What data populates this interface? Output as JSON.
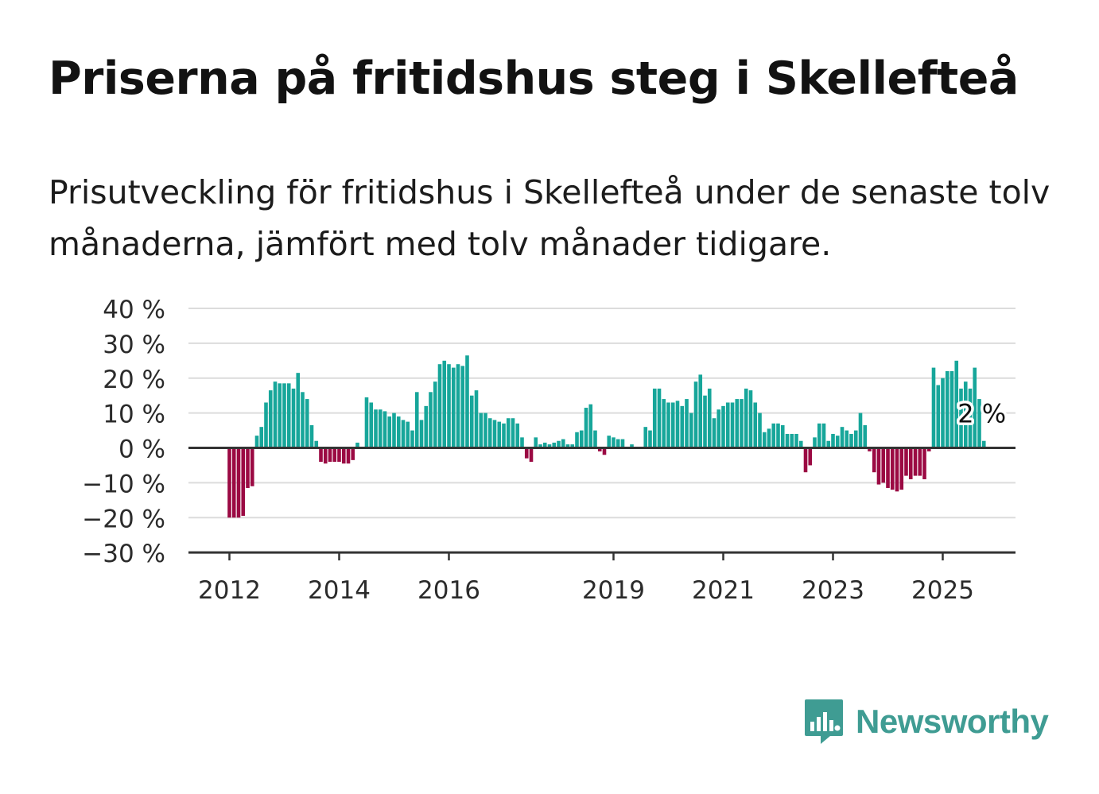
{
  "title": "Priserna på fritidshus steg i Skellefteå",
  "subtitle": "Prisutveckling för fritidshus i Skellefteå under de senaste tolv månaderna, jämfört med tolv månader tidigare.",
  "brand": {
    "name": "Newsworthy",
    "icon": "newsworthy-logo-icon"
  },
  "colors": {
    "positive": "#17a69a",
    "negative": "#9b0a43",
    "axis": "#333333",
    "grid": "#dcdcdc",
    "brand": "#3f9c93"
  },
  "chart_data": {
    "type": "bar",
    "title": "Priserna på fritidshus steg i Skellefteå",
    "xlabel": "",
    "ylabel": "",
    "x_start": "2012-01",
    "x_ticks": [
      "2012",
      "2014",
      "2016",
      "2019",
      "2021",
      "2023",
      "2025"
    ],
    "y_ticks": [
      40,
      30,
      20,
      10,
      0,
      -10,
      -20,
      -30
    ],
    "y_tick_labels": [
      "40 %",
      "30 %",
      "20 %",
      "10 %",
      "0 %",
      "−10 %",
      "−20 %",
      "−30 %"
    ],
    "ylim": [
      -30,
      40
    ],
    "grid": true,
    "annotation": {
      "text": "2 %",
      "value": 2
    },
    "series": [
      {
        "values": [
          -20,
          -20,
          -20,
          -19.5,
          -11.5,
          -11,
          3.5,
          6,
          13,
          16.5,
          19,
          18.5,
          18.5,
          18.5,
          17,
          21.5,
          16,
          14,
          6.5,
          2,
          -4,
          -4.5,
          -4,
          -4,
          -4,
          -4.5,
          -4.5,
          -3.5,
          1.5,
          0,
          14.5,
          13,
          11,
          11,
          10.5,
          9,
          10,
          9,
          8,
          7.5,
          5,
          16,
          8,
          12,
          16,
          19,
          24,
          25,
          24,
          23,
          24,
          23.5,
          26.5,
          15,
          16.5,
          10,
          10,
          8.5,
          8,
          7.5,
          7,
          8.5,
          8.5,
          7,
          3,
          -3,
          -4,
          3,
          1,
          1.5,
          1,
          1.5,
          2,
          2.5,
          1,
          1,
          4.5,
          5,
          11.5,
          12.5,
          5,
          -1,
          -2,
          3.5,
          3,
          2.5,
          2.5,
          0,
          1,
          0,
          0,
          6,
          5,
          17,
          17,
          14,
          13,
          13,
          13.5,
          12,
          14,
          10,
          19,
          21,
          15,
          17,
          8.5,
          11,
          12,
          13,
          13,
          14,
          14,
          17,
          16.5,
          13,
          10,
          4.5,
          5.5,
          7,
          7,
          6.5,
          4,
          4,
          4,
          2,
          -7,
          -5,
          3,
          7,
          7,
          2,
          4,
          3.5,
          6,
          5,
          4,
          5,
          10,
          6.5,
          -1,
          -7,
          -10.5,
          -10,
          -11.5,
          -12,
          -12.5,
          -12,
          -8,
          -9,
          -8,
          -8,
          -9,
          -1,
          23,
          18,
          20,
          22,
          22,
          25,
          17,
          19,
          17,
          23,
          14,
          2
        ]
      }
    ]
  }
}
